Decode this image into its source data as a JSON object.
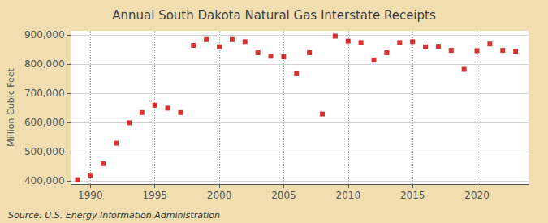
{
  "chart_data": {
    "type": "scatter",
    "title": "Annual South Dakota Natural Gas Interstate Receipts",
    "ylabel": "Million Cubic Feet",
    "annotations": [
      "Source: U.S. Energy Information Administration"
    ],
    "x": [
      1989,
      1990,
      1991,
      1992,
      1993,
      1994,
      1995,
      1996,
      1997,
      1998,
      1999,
      2000,
      2001,
      2002,
      2003,
      2004,
      2005,
      2006,
      2007,
      2008,
      2009,
      2010,
      2011,
      2012,
      2013,
      2014,
      2015,
      2016,
      2017,
      2018,
      2019,
      2020,
      2021,
      2022,
      2023
    ],
    "values": [
      405000,
      420000,
      460000,
      530000,
      600000,
      635000,
      660000,
      650000,
      635000,
      865000,
      885000,
      860000,
      885000,
      878000,
      840000,
      828000,
      826000,
      768000,
      840000,
      630000,
      897000,
      880000,
      875000,
      815000,
      840000,
      875000,
      878000,
      860000,
      862000,
      848000,
      783000,
      847000,
      870000,
      848000,
      845000
    ],
    "color": "#cc0000",
    "marker": "square",
    "xlim": [
      1988.5,
      2024
    ],
    "ylim": [
      390000,
      915000
    ],
    "xticks": [
      1990,
      1995,
      2000,
      2005,
      2010,
      2015,
      2020
    ],
    "yticks": [
      {
        "value": 400000,
        "label": "400,000"
      },
      {
        "value": 500000,
        "label": "500,000"
      },
      {
        "value": 600000,
        "label": "600,000"
      },
      {
        "value": 700000,
        "label": "700,000"
      },
      {
        "value": 800000,
        "label": "800,000"
      },
      {
        "value": 900000,
        "label": "900,000"
      }
    ],
    "grid": true
  }
}
